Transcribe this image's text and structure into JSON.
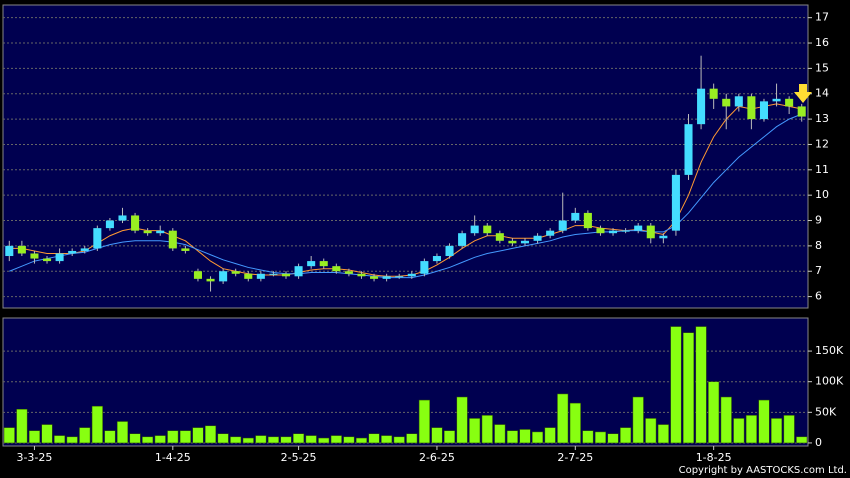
{
  "chart_data": [
    {
      "type": "candlestick",
      "open": [
        7.6,
        8.0,
        7.7,
        7.5,
        7.4,
        7.7,
        7.8,
        7.9,
        8.7,
        9.0,
        9.2,
        8.6,
        8.5,
        8.6,
        7.9,
        7.0,
        6.7,
        6.6,
        7.0,
        6.9,
        6.7,
        6.9,
        6.9,
        6.8,
        7.2,
        7.4,
        7.2,
        7.0,
        6.9,
        6.8,
        6.7,
        6.8,
        6.8,
        6.9,
        7.4,
        7.6,
        8.0,
        8.5,
        8.8,
        8.5,
        8.2,
        8.1,
        8.2,
        8.4,
        8.6,
        9.0,
        9.3,
        8.7,
        8.5,
        8.6,
        8.6,
        8.8,
        8.3,
        8.6,
        10.8,
        12.8,
        14.2,
        13.8,
        13.5,
        13.9,
        13.0,
        13.7,
        13.8,
        13.5
      ],
      "high": [
        8.2,
        8.2,
        7.8,
        7.6,
        7.9,
        7.9,
        8.0,
        8.8,
        9.1,
        9.5,
        9.3,
        8.7,
        8.8,
        8.7,
        8.0,
        7.1,
        6.8,
        7.1,
        7.1,
        7.0,
        7.0,
        7.0,
        7.0,
        7.3,
        7.6,
        7.5,
        7.3,
        7.1,
        7.0,
        6.9,
        6.9,
        6.9,
        7.0,
        7.5,
        7.7,
        8.1,
        8.6,
        9.2,
        8.9,
        8.6,
        8.3,
        8.3,
        8.5,
        8.7,
        10.1,
        9.5,
        9.4,
        8.8,
        8.7,
        8.7,
        8.9,
        8.9,
        8.5,
        11.0,
        13.2,
        15.5,
        14.4,
        14.0,
        14.0,
        14.0,
        13.8,
        14.4,
        13.9,
        13.6
      ],
      "low": [
        7.4,
        7.6,
        7.3,
        7.3,
        7.3,
        7.6,
        7.7,
        7.8,
        8.6,
        8.9,
        8.5,
        8.4,
        8.4,
        7.8,
        7.7,
        6.6,
        6.2,
        6.5,
        6.8,
        6.6,
        6.6,
        6.8,
        6.7,
        6.7,
        7.1,
        7.1,
        6.9,
        6.8,
        6.7,
        6.6,
        6.6,
        6.7,
        6.7,
        6.8,
        7.3,
        7.5,
        7.9,
        8.4,
        8.4,
        8.1,
        8.0,
        8.0,
        8.1,
        8.3,
        8.5,
        8.9,
        8.6,
        8.4,
        8.4,
        8.5,
        8.5,
        8.1,
        8.1,
        8.4,
        10.6,
        12.6,
        13.4,
        12.6,
        13.3,
        12.6,
        12.9,
        13.5,
        13.2,
        12.9
      ],
      "close": [
        8.0,
        7.7,
        7.5,
        7.4,
        7.7,
        7.8,
        7.9,
        8.7,
        9.0,
        9.2,
        8.6,
        8.5,
        8.6,
        7.9,
        7.8,
        6.7,
        6.6,
        7.0,
        6.9,
        6.7,
        6.9,
        6.9,
        6.8,
        7.2,
        7.4,
        7.2,
        7.0,
        6.9,
        6.8,
        6.7,
        6.8,
        6.8,
        6.9,
        7.4,
        7.6,
        8.0,
        8.5,
        8.8,
        8.5,
        8.2,
        8.1,
        8.2,
        8.4,
        8.6,
        9.0,
        9.3,
        8.7,
        8.5,
        8.6,
        8.6,
        8.8,
        8.3,
        8.4,
        10.8,
        12.8,
        14.2,
        13.8,
        13.5,
        13.9,
        13.0,
        13.7,
        13.8,
        13.5,
        13.1
      ],
      "up_color": "#44ddff",
      "down_color": "#99ee22",
      "ma_lines": [
        {
          "color": "#ff9933",
          "values": [
            7.9,
            7.9,
            7.8,
            7.7,
            7.7,
            7.7,
            7.8,
            8.1,
            8.4,
            8.6,
            8.7,
            8.6,
            8.6,
            8.4,
            8.2,
            7.8,
            7.4,
            7.1,
            7.0,
            6.9,
            6.85,
            6.85,
            6.85,
            6.95,
            7.05,
            7.1,
            7.1,
            7.05,
            6.95,
            6.85,
            6.8,
            6.8,
            6.85,
            7.0,
            7.25,
            7.55,
            7.9,
            8.2,
            8.4,
            8.4,
            8.3,
            8.3,
            8.3,
            8.45,
            8.6,
            8.8,
            8.8,
            8.7,
            8.65,
            8.6,
            8.65,
            8.55,
            8.45,
            9.0,
            10.0,
            11.3,
            12.3,
            13.0,
            13.5,
            13.4,
            13.5,
            13.6,
            13.5,
            13.4
          ]
        },
        {
          "color": "#4499ff",
          "values": [
            7.0,
            7.2,
            7.4,
            7.5,
            7.6,
            7.7,
            7.75,
            7.9,
            8.05,
            8.15,
            8.2,
            8.2,
            8.2,
            8.15,
            8.05,
            7.85,
            7.65,
            7.45,
            7.3,
            7.15,
            7.05,
            6.95,
            6.9,
            6.9,
            6.95,
            6.95,
            6.95,
            6.9,
            6.85,
            6.8,
            6.75,
            6.75,
            6.75,
            6.85,
            7.0,
            7.15,
            7.35,
            7.55,
            7.7,
            7.8,
            7.9,
            8.0,
            8.1,
            8.2,
            8.35,
            8.45,
            8.5,
            8.55,
            8.55,
            8.6,
            8.6,
            8.55,
            8.55,
            8.8,
            9.3,
            9.9,
            10.5,
            11.0,
            11.5,
            11.9,
            12.3,
            12.7,
            13.0,
            13.2
          ]
        }
      ],
      "ylim": [
        5.55,
        17.5
      ],
      "yticks": [
        6,
        7,
        8,
        9,
        10,
        11,
        12,
        13,
        14,
        15,
        16,
        17
      ],
      "grid": true
    },
    {
      "type": "bar",
      "categories": [
        null,
        null,
        "3-3-25",
        null,
        null,
        null,
        null,
        null,
        null,
        null,
        null,
        null,
        null,
        "1-4-25",
        null,
        null,
        null,
        null,
        null,
        null,
        null,
        null,
        null,
        "2-5-25",
        null,
        null,
        null,
        null,
        null,
        null,
        null,
        null,
        null,
        null,
        "2-6-25",
        null,
        null,
        null,
        null,
        null,
        null,
        null,
        null,
        null,
        null,
        "2-7-25",
        null,
        null,
        null,
        null,
        null,
        null,
        null,
        null,
        null,
        null,
        "1-8-25",
        null,
        null,
        null,
        null,
        null,
        null,
        null
      ],
      "values": [
        25000,
        55000,
        20000,
        30000,
        12000,
        10000,
        25000,
        60000,
        20000,
        35000,
        15000,
        10000,
        12000,
        20000,
        20000,
        25000,
        28000,
        15000,
        10000,
        8000,
        12000,
        10000,
        10000,
        15000,
        12000,
        8000,
        12000,
        10000,
        8000,
        15000,
        12000,
        10000,
        15000,
        70000,
        25000,
        20000,
        75000,
        40000,
        45000,
        30000,
        20000,
        22000,
        18000,
        25000,
        80000,
        65000,
        20000,
        18000,
        15000,
        25000,
        75000,
        40000,
        30000,
        190000,
        180000,
        190000,
        100000,
        75000,
        40000,
        45000,
        70000,
        40000,
        45000,
        10000
      ],
      "color": "#88ff11",
      "ylim": [
        -5000,
        204000
      ],
      "yticks": [
        0,
        {
          "value": 50000,
          "label": "50K"
        },
        {
          "value": 100000,
          "label": "100K"
        },
        {
          "value": 150000,
          "label": "150K"
        }
      ],
      "grid": true
    }
  ],
  "credit": "Copyright by AASTOCKS.com Ltd."
}
